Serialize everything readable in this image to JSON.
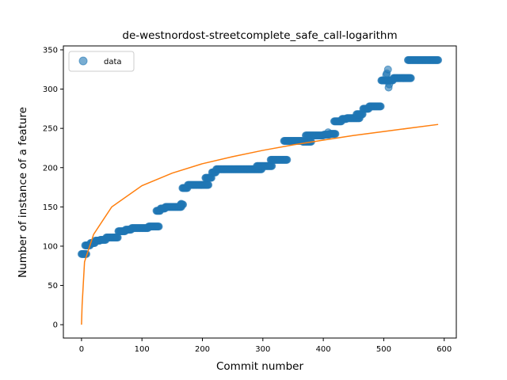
{
  "chart_data": {
    "type": "scatter",
    "title": "de-westnordost-streetcomplete_safe_call-logarithm",
    "xlabel": "Commit number",
    "ylabel": "Number of instance of a feature",
    "xlim": [
      -30,
      620
    ],
    "ylim": [
      -17,
      355
    ],
    "xticks": [
      0,
      100,
      200,
      300,
      400,
      500,
      600
    ],
    "yticks": [
      0,
      50,
      100,
      150,
      200,
      250,
      300,
      350
    ],
    "grid": false,
    "legend": {
      "placement": "top-left",
      "entries": [
        "data"
      ]
    },
    "colors": {
      "data": "#1f77b4",
      "fit": "#ff7f0e"
    },
    "series": [
      {
        "name": "data",
        "kind": "scatter",
        "segments": [
          [
            0,
            8,
            90
          ],
          [
            6,
            14,
            101
          ],
          [
            15,
            22,
            104
          ],
          [
            23,
            30,
            107
          ],
          [
            31,
            40,
            108
          ],
          [
            41,
            60,
            111
          ],
          [
            61,
            72,
            119
          ],
          [
            73,
            82,
            121
          ],
          [
            83,
            110,
            123
          ],
          [
            111,
            128,
            125
          ],
          [
            124,
            130,
            145
          ],
          [
            131,
            138,
            148
          ],
          [
            139,
            165,
            150
          ],
          [
            164,
            168,
            153
          ],
          [
            167,
            175,
            174
          ],
          [
            176,
            210,
            178
          ],
          [
            205,
            215,
            187
          ],
          [
            216,
            222,
            194
          ],
          [
            223,
            298,
            198
          ],
          [
            290,
            315,
            202
          ],
          [
            313,
            340,
            210
          ],
          [
            335,
            365,
            234
          ],
          [
            366,
            380,
            233
          ],
          [
            371,
            400,
            241
          ],
          [
            401,
            410,
            242
          ],
          [
            411,
            420,
            243
          ],
          [
            418,
            430,
            259
          ],
          [
            431,
            438,
            262
          ],
          [
            439,
            460,
            263
          ],
          [
            455,
            465,
            268
          ],
          [
            466,
            475,
            275
          ],
          [
            476,
            495,
            278
          ],
          [
            496,
            515,
            311
          ],
          [
            516,
            545,
            314
          ],
          [
            540,
            590,
            337
          ]
        ],
        "outliers": [
          [
            505,
            320
          ],
          [
            507,
            325
          ],
          [
            508,
            302
          ],
          [
            509,
            306
          ],
          [
            504,
            318
          ],
          [
            165,
            154
          ],
          [
            408,
            245
          ]
        ]
      },
      {
        "kind": "line",
        "function": "logarithmic",
        "x_range": [
          0,
          590
        ],
        "points": [
          [
            0,
            0
          ],
          [
            1,
            25
          ],
          [
            5,
            80
          ],
          [
            20,
            115
          ],
          [
            50,
            150
          ],
          [
            100,
            177
          ],
          [
            150,
            193
          ],
          [
            200,
            205
          ],
          [
            250,
            214
          ],
          [
            300,
            222
          ],
          [
            350,
            229
          ],
          [
            400,
            235
          ],
          [
            450,
            241
          ],
          [
            500,
            246
          ],
          [
            550,
            251
          ],
          [
            590,
            255
          ]
        ]
      }
    ]
  }
}
